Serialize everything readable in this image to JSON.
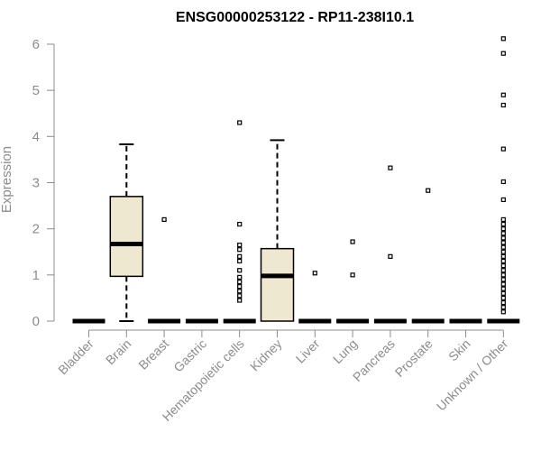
{
  "chart_data": {
    "type": "box",
    "title": "ENSG00000253122 - RP11-238I10.1",
    "xlabel": "",
    "ylabel": "Expression",
    "ylim": [
      0,
      6.2
    ],
    "yticks": [
      0,
      1,
      2,
      3,
      4,
      5,
      6
    ],
    "categories": [
      "Bladder",
      "Brain",
      "Breast",
      "Gastric",
      "Hematopoietic cells",
      "Kidney",
      "Liver",
      "Lung",
      "Pancreas",
      "Prostate",
      "Skin",
      "Unknown / Other"
    ],
    "box_fill": "#efe8d0",
    "boxes": [
      {
        "min": 0,
        "q1": 0,
        "median": 0,
        "q3": 0,
        "max": 0,
        "outliers": []
      },
      {
        "min": 0,
        "q1": 0.97,
        "median": 1.67,
        "q3": 2.7,
        "max": 3.83,
        "outliers": []
      },
      {
        "min": 0,
        "q1": 0,
        "median": 0,
        "q3": 0,
        "max": 0,
        "outliers": [
          2.2
        ]
      },
      {
        "min": 0,
        "q1": 0,
        "median": 0,
        "q3": 0,
        "max": 0,
        "outliers": []
      },
      {
        "min": 0,
        "q1": 0,
        "median": 0,
        "q3": 0,
        "max": 0,
        "outliers": [
          4.3,
          2.1,
          1.65,
          1.55,
          1.4,
          1.3,
          1.1,
          0.95,
          0.85,
          0.75,
          0.65,
          0.55,
          0.45
        ]
      },
      {
        "min": 0,
        "q1": 0,
        "median": 0.98,
        "q3": 1.57,
        "max": 3.92,
        "outliers": []
      },
      {
        "min": 0,
        "q1": 0,
        "median": 0,
        "q3": 0,
        "max": 0,
        "outliers": [
          1.04
        ]
      },
      {
        "min": 0,
        "q1": 0,
        "median": 0,
        "q3": 0,
        "max": 0,
        "outliers": [
          1.72,
          1.0
        ]
      },
      {
        "min": 0,
        "q1": 0,
        "median": 0,
        "q3": 0,
        "max": 0,
        "outliers": [
          3.32,
          1.4
        ]
      },
      {
        "min": 0,
        "q1": 0,
        "median": 0,
        "q3": 0,
        "max": 0,
        "outliers": [
          2.83
        ]
      },
      {
        "min": 0,
        "q1": 0,
        "median": 0,
        "q3": 0,
        "max": 0,
        "outliers": []
      },
      {
        "min": 0,
        "q1": 0,
        "median": 0,
        "q3": 0,
        "max": 0,
        "outliers": [
          6.12,
          5.8,
          4.9,
          4.68,
          3.73,
          3.02,
          2.63,
          2.2,
          2.1,
          2.0,
          1.9,
          1.8,
          1.7,
          1.6,
          1.5,
          1.4,
          1.3,
          1.2,
          1.1,
          1.0,
          0.9,
          0.8,
          0.7,
          0.6,
          0.5,
          0.4,
          0.3,
          0.2
        ]
      }
    ]
  }
}
